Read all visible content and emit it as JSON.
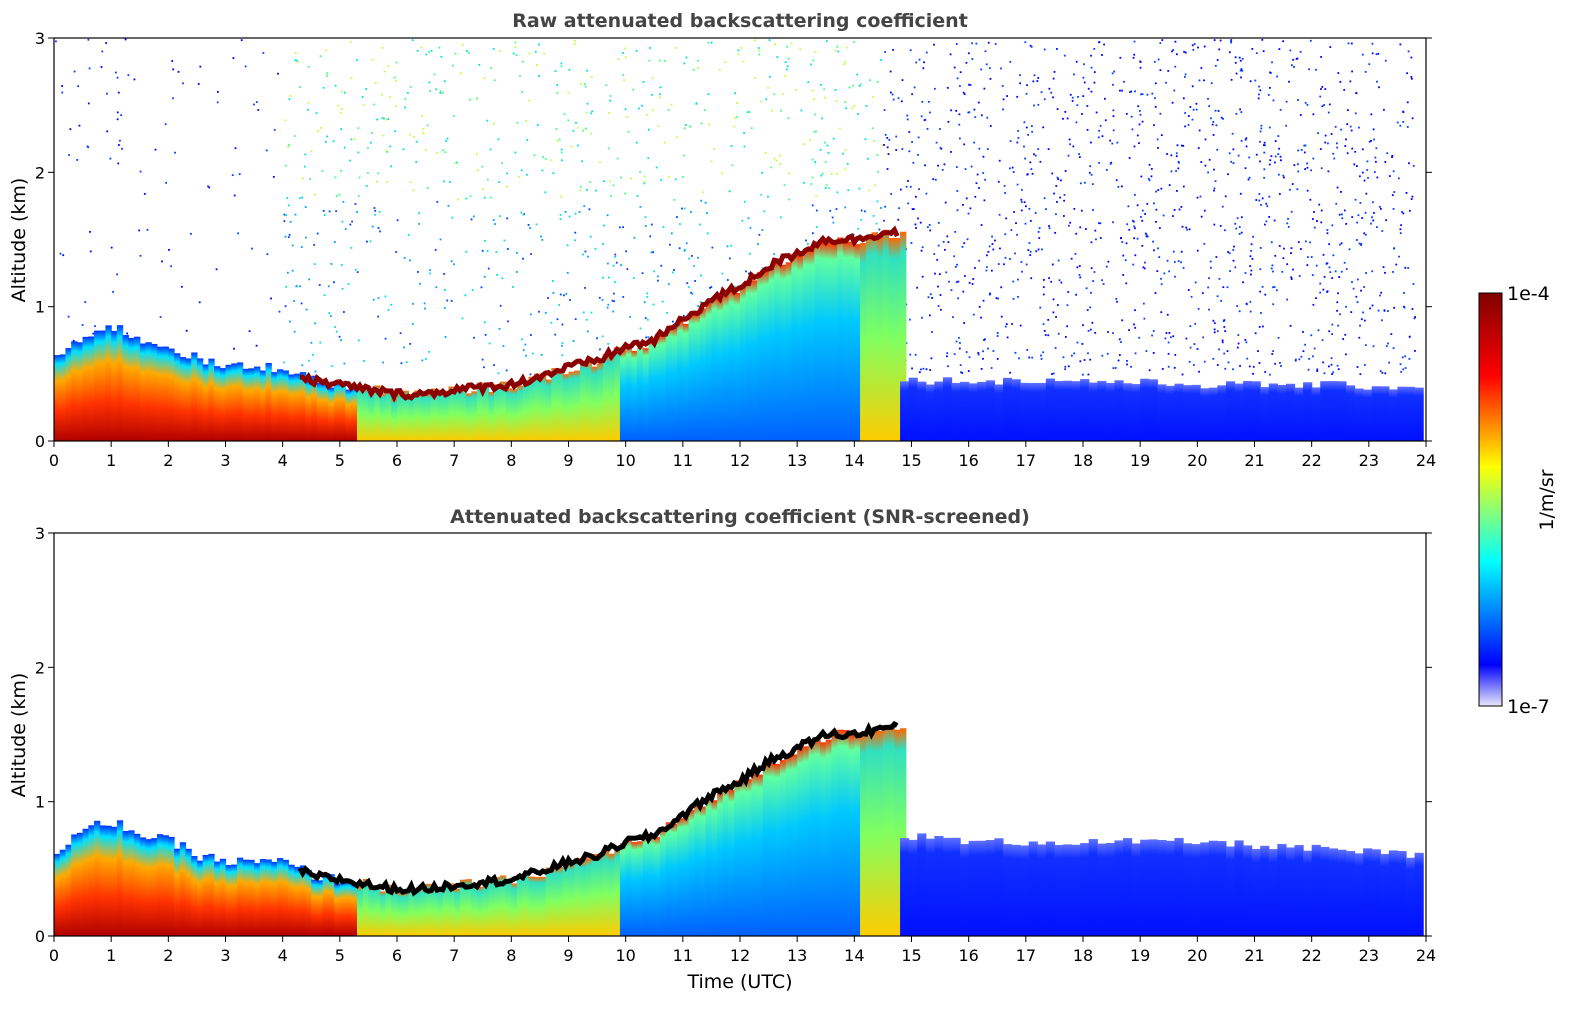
{
  "colors": {
    "colormap": [
      "#e8e8fa",
      "#0000ff",
      "#00ffff",
      "#ffff00",
      "#ff0000",
      "#800000"
    ],
    "boundary_layer_top": "#000000",
    "axis": "#000000"
  },
  "colorbar": {
    "max_label": "1e-4",
    "min_label": "1e-7",
    "unit_label": "1/m/sr",
    "scale": "log"
  },
  "chart_data": [
    {
      "type": "heatmap",
      "title": "Raw attenuated backscattering coefficient",
      "xlabel": "",
      "ylabel": "Altitude (km)",
      "xlim": [
        0,
        24
      ],
      "ylim": [
        0,
        3
      ],
      "xticks": [
        "0",
        "1",
        "2",
        "3",
        "4",
        "5",
        "6",
        "7",
        "8",
        "9",
        "10",
        "11",
        "12",
        "13",
        "14",
        "15",
        "16",
        "17",
        "18",
        "19",
        "20",
        "21",
        "22",
        "23",
        "24"
      ],
      "yticks": [
        "0",
        "1",
        "2",
        "3"
      ],
      "colorscale": "jet (log 1e-7 to 1e-4, 1/m/sr)",
      "layer_top_km": {
        "time_utc": [
          0,
          0.5,
          1,
          1.5,
          2,
          2.5,
          3,
          3.5,
          4,
          4.5,
          5,
          5.5,
          6,
          6.5,
          7,
          7.5,
          8,
          8.5,
          9,
          9.5,
          10,
          10.5,
          11,
          11.5,
          12,
          12.5,
          13,
          13.5,
          14,
          14.5,
          14.8
        ],
        "altitude_km": [
          0.6,
          0.8,
          0.85,
          0.75,
          0.7,
          0.6,
          0.55,
          0.55,
          0.55,
          0.45,
          0.42,
          0.38,
          0.35,
          0.35,
          0.38,
          0.4,
          0.42,
          0.48,
          0.55,
          0.6,
          0.7,
          0.75,
          0.9,
          1.05,
          1.15,
          1.3,
          1.4,
          1.5,
          1.5,
          1.55,
          1.55
        ]
      },
      "surface_layer_top_km": {
        "time_utc": [
          14.8,
          16,
          18,
          20,
          22,
          23.8
        ],
        "altitude_km": [
          0.45,
          0.45,
          0.45,
          0.42,
          0.42,
          0.4
        ]
      }
    },
    {
      "type": "heatmap",
      "title": "Attenuated backscattering coefficient (SNR-screened)",
      "xlabel": "Time (UTC)",
      "ylabel": "Altitude (km)",
      "xlim": [
        0,
        24
      ],
      "ylim": [
        0,
        3
      ],
      "xticks": [
        "0",
        "1",
        "2",
        "3",
        "4",
        "5",
        "6",
        "7",
        "8",
        "9",
        "10",
        "11",
        "12",
        "13",
        "14",
        "15",
        "16",
        "17",
        "18",
        "19",
        "20",
        "21",
        "22",
        "23",
        "24"
      ],
      "yticks": [
        "0",
        "1",
        "2",
        "3"
      ],
      "colorscale": "jet (log 1e-7 to 1e-4, 1/m/sr)",
      "layer_top_km": {
        "time_utc": [
          0,
          0.5,
          1,
          1.5,
          2,
          2.5,
          3,
          3.5,
          4,
          4.5,
          5,
          5.5,
          6,
          6.5,
          7,
          7.5,
          8,
          8.5,
          9,
          9.5,
          10,
          10.5,
          11,
          11.5,
          12,
          12.5,
          13,
          13.5,
          14,
          14.5,
          14.8
        ],
        "altitude_km": [
          0.6,
          0.8,
          0.85,
          0.75,
          0.7,
          0.6,
          0.55,
          0.55,
          0.55,
          0.45,
          0.42,
          0.38,
          0.35,
          0.35,
          0.38,
          0.4,
          0.42,
          0.48,
          0.55,
          0.6,
          0.7,
          0.75,
          0.9,
          1.05,
          1.15,
          1.3,
          1.4,
          1.5,
          1.5,
          1.55,
          1.55
        ]
      },
      "surface_layer_top_km": {
        "time_utc": [
          14.8,
          16,
          18,
          20,
          22,
          23.8
        ],
        "altitude_km": [
          0.75,
          0.7,
          0.7,
          0.7,
          0.65,
          0.6
        ]
      }
    }
  ]
}
